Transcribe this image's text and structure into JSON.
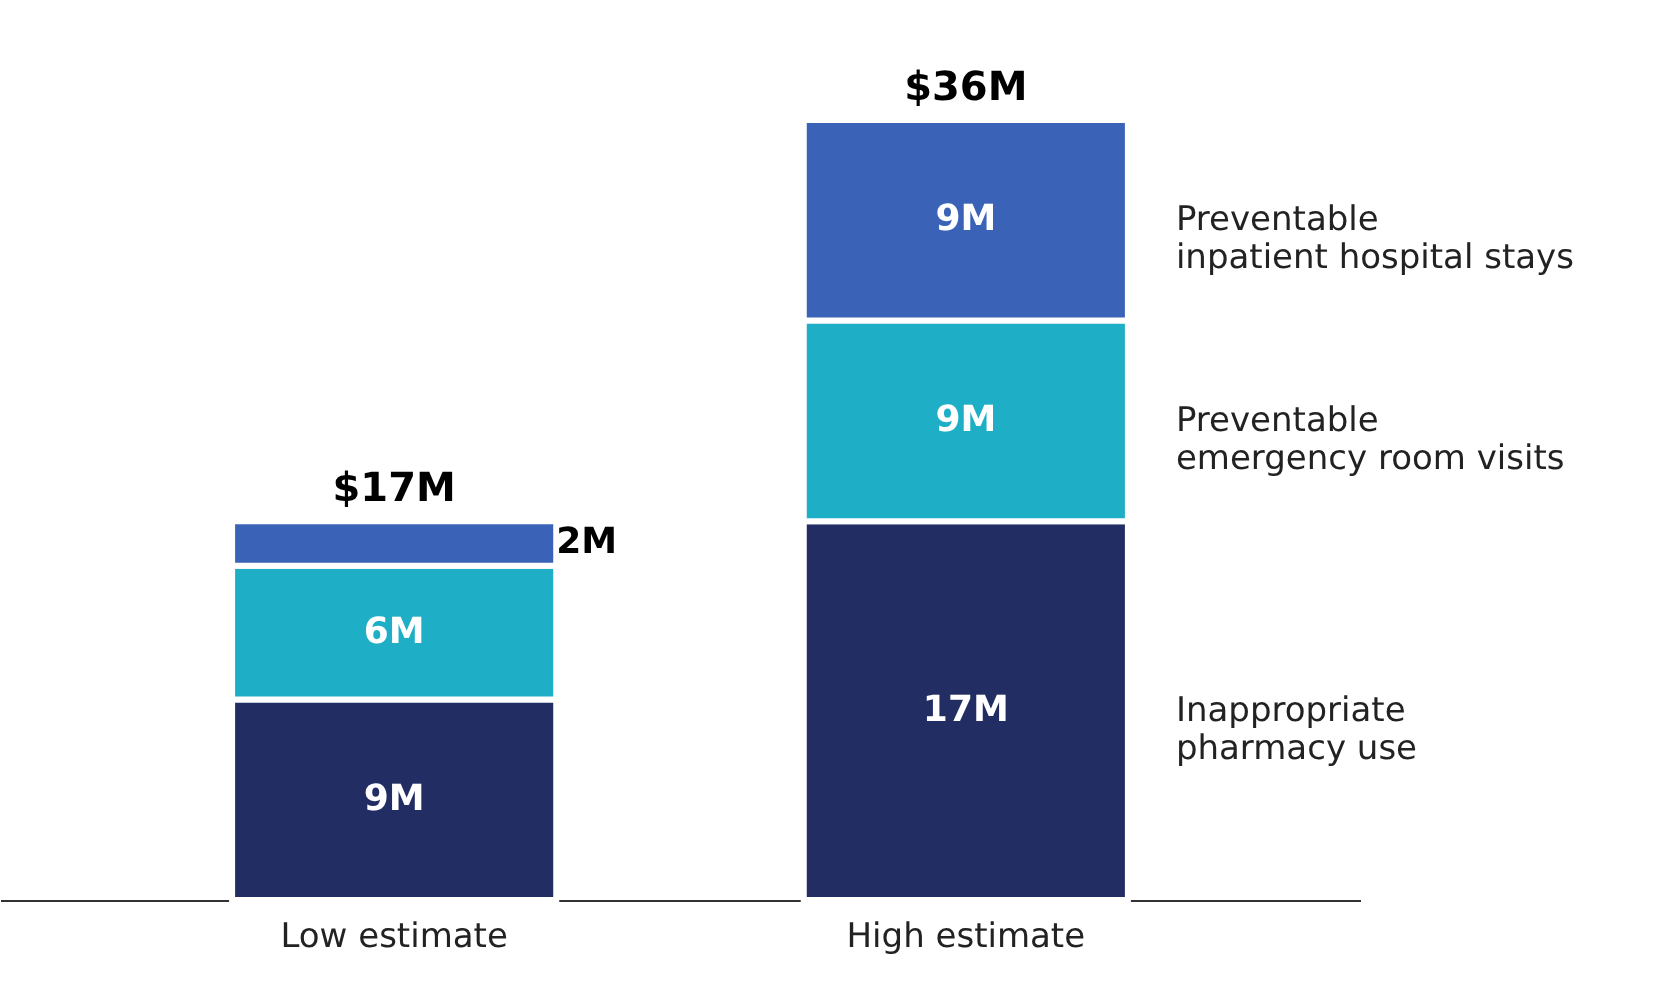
{
  "chart_data": {
    "type": "bar",
    "stacked": true,
    "legend": false,
    "categories": [
      "Low estimate",
      "High estimate"
    ],
    "series": [
      {
        "name": "Inappropriate\npharmacy use",
        "color": "#222d63",
        "values": [
          9,
          17
        ],
        "value_labels": [
          "9M",
          "17M"
        ]
      },
      {
        "name": "Preventable\nemergency room visits",
        "color": "#1eafc6",
        "values": [
          6,
          9
        ],
        "value_labels": [
          "6M",
          "9M"
        ]
      },
      {
        "name": "Preventable\ninpatient hospital stays",
        "color": "#3a63b8",
        "values": [
          2,
          9
        ],
        "value_labels": [
          "2M",
          "9M"
        ]
      }
    ],
    "totals": [
      "$17M",
      "$36M"
    ]
  }
}
